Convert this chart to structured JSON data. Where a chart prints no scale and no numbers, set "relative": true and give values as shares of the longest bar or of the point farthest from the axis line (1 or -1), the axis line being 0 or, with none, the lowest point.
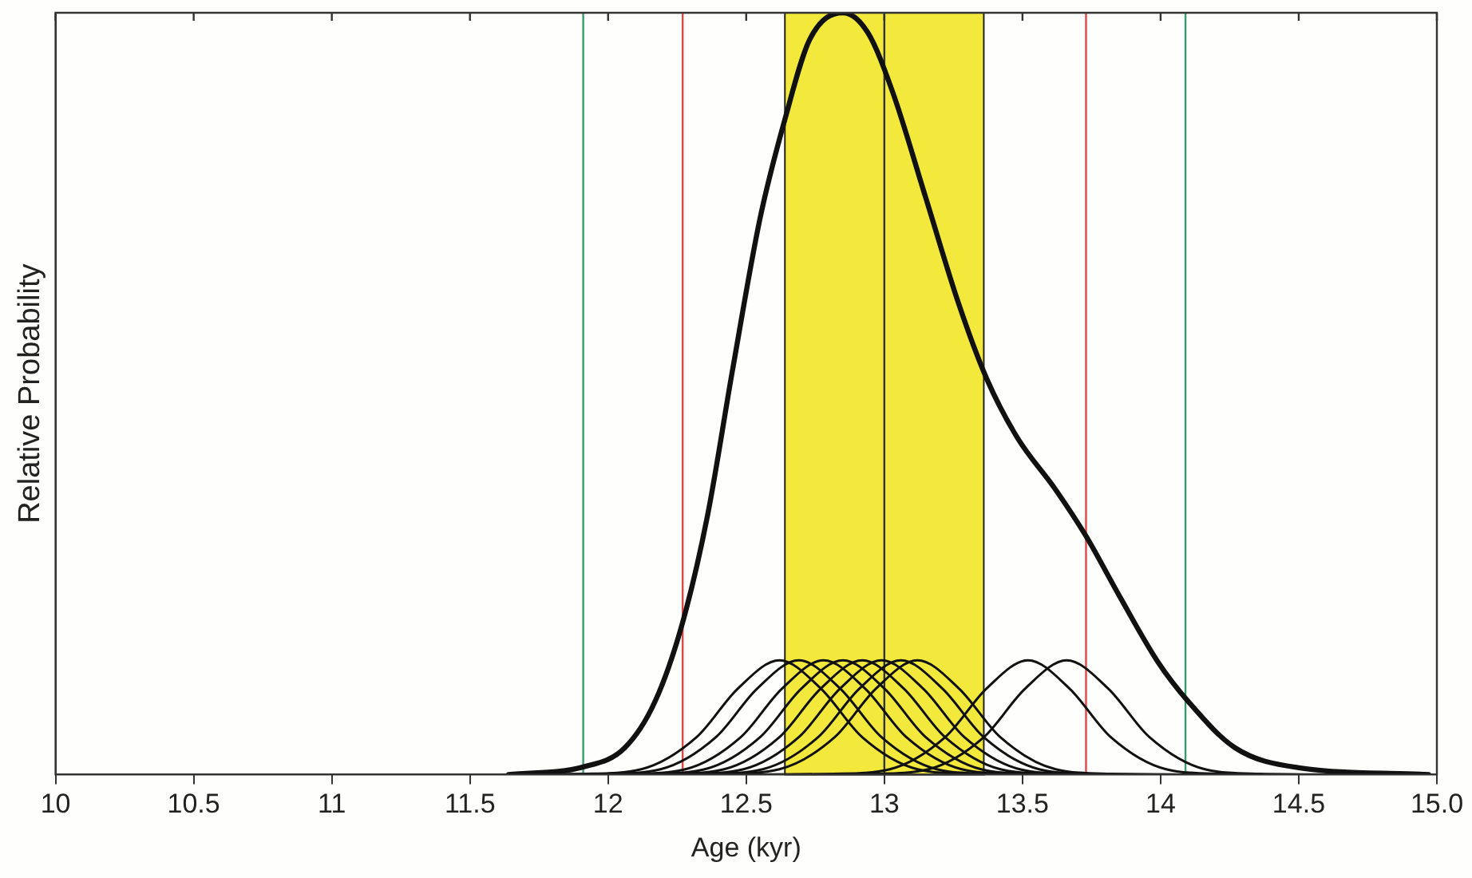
{
  "chart_data": {
    "type": "line",
    "relative": true,
    "xlabel": "Age (kyr)",
    "ylabel": "Relative Probability",
    "xlim": [
      10,
      15
    ],
    "xticks": [
      10,
      10.5,
      11,
      11.5,
      12,
      12.5,
      13,
      13.5,
      14,
      14.5,
      {
        "value": 15,
        "label": "15.0"
      }
    ],
    "grid": false,
    "legend": false,
    "marker": "none",
    "line_style": "solid",
    "bands": [
      {
        "axis": "x",
        "from": 12.64,
        "to": 13.36,
        "color": "#f2e93c"
      }
    ],
    "ref_lines": [
      {
        "axis": "x",
        "value": 11.91,
        "color": "#3a9a6a"
      },
      {
        "axis": "x",
        "value": 14.09,
        "color": "#3a9a6a"
      },
      {
        "axis": "x",
        "value": 12.27,
        "color": "#e04848"
      },
      {
        "axis": "x",
        "value": 13.73,
        "color": "#e04848"
      },
      {
        "axis": "x",
        "value": 13.0,
        "color": "#333333"
      }
    ],
    "series": [
      {
        "color": "#111111",
        "x": [
          11.64,
          11.91,
          12.06,
          12.17,
          12.27,
          12.36,
          12.45,
          12.55,
          12.64,
          12.73,
          12.85,
          12.94,
          13.03,
          13.15,
          13.27,
          13.37,
          13.48,
          13.62,
          13.73,
          13.85,
          13.99,
          14.1,
          14.27,
          14.5,
          14.97
        ],
        "values": [
          0,
          0.01,
          0.035,
          0.096,
          0.2,
          0.34,
          0.53,
          0.73,
          0.86,
          0.965,
          1,
          0.974,
          0.896,
          0.757,
          0.617,
          0.52,
          0.443,
          0.374,
          0.313,
          0.235,
          0.148,
          0.096,
          0.035,
          0.009,
          0
        ]
      },
      {
        "color": "#111111",
        "x": [
          11.62,
          11.92,
          12.12,
          12.32,
          12.47,
          12.62,
          12.77,
          12.92,
          13.12,
          13.32,
          13.62
        ],
        "values": [
          0,
          0.001,
          0.007,
          0.049,
          0.113,
          0.15,
          0.113,
          0.049,
          0.007,
          0.001,
          0
        ]
      },
      {
        "color": "#111111",
        "x": [
          11.69,
          11.99,
          12.19,
          12.39,
          12.54,
          12.69,
          12.84,
          12.99,
          13.19,
          13.39,
          13.69
        ],
        "values": [
          0,
          0.001,
          0.007,
          0.049,
          0.113,
          0.15,
          0.113,
          0.049,
          0.007,
          0.001,
          0
        ]
      },
      {
        "color": "#111111",
        "x": [
          11.78,
          12.08,
          12.28,
          12.48,
          12.63,
          12.78,
          12.93,
          13.08,
          13.28,
          13.48,
          13.78
        ],
        "values": [
          0,
          0.001,
          0.007,
          0.049,
          0.113,
          0.15,
          0.113,
          0.049,
          0.007,
          0.001,
          0
        ]
      },
      {
        "color": "#111111",
        "x": [
          11.85,
          12.15,
          12.35,
          12.55,
          12.7,
          12.85,
          13.0,
          13.15,
          13.35,
          13.55,
          13.85
        ],
        "values": [
          0,
          0.001,
          0.007,
          0.049,
          0.113,
          0.15,
          0.113,
          0.049,
          0.007,
          0.001,
          0
        ]
      },
      {
        "color": "#111111",
        "x": [
          11.92,
          12.22,
          12.42,
          12.62,
          12.77,
          12.92,
          13.07,
          13.22,
          13.42,
          13.62,
          13.92
        ],
        "values": [
          0,
          0.001,
          0.007,
          0.049,
          0.113,
          0.15,
          0.113,
          0.049,
          0.007,
          0.001,
          0
        ]
      },
      {
        "color": "#111111",
        "x": [
          11.99,
          12.29,
          12.49,
          12.69,
          12.84,
          12.99,
          13.14,
          13.29,
          13.49,
          13.69,
          13.99
        ],
        "values": [
          0,
          0.001,
          0.007,
          0.049,
          0.113,
          0.15,
          0.113,
          0.049,
          0.007,
          0.001,
          0
        ]
      },
      {
        "color": "#111111",
        "x": [
          12.06,
          12.36,
          12.56,
          12.76,
          12.91,
          13.06,
          13.21,
          13.36,
          13.56,
          13.76,
          14.06
        ],
        "values": [
          0,
          0.001,
          0.007,
          0.049,
          0.113,
          0.15,
          0.113,
          0.049,
          0.007,
          0.001,
          0
        ]
      },
      {
        "color": "#111111",
        "x": [
          12.12,
          12.42,
          12.62,
          12.82,
          12.97,
          13.12,
          13.27,
          13.42,
          13.62,
          13.82,
          14.12
        ],
        "values": [
          0,
          0.001,
          0.007,
          0.049,
          0.113,
          0.15,
          0.113,
          0.049,
          0.007,
          0.001,
          0
        ]
      },
      {
        "color": "#111111",
        "x": [
          12.52,
          12.82,
          13.02,
          13.22,
          13.37,
          13.52,
          13.67,
          13.82,
          14.02,
          14.22,
          14.52
        ],
        "values": [
          0,
          0.001,
          0.007,
          0.049,
          0.113,
          0.15,
          0.113,
          0.049,
          0.007,
          0.001,
          0
        ]
      },
      {
        "color": "#111111",
        "x": [
          12.66,
          12.96,
          13.16,
          13.36,
          13.51,
          13.66,
          13.81,
          13.96,
          14.16,
          14.36,
          14.66
        ],
        "values": [
          0,
          0.001,
          0.007,
          0.049,
          0.113,
          0.15,
          0.113,
          0.049,
          0.007,
          0.001,
          0
        ]
      }
    ]
  }
}
